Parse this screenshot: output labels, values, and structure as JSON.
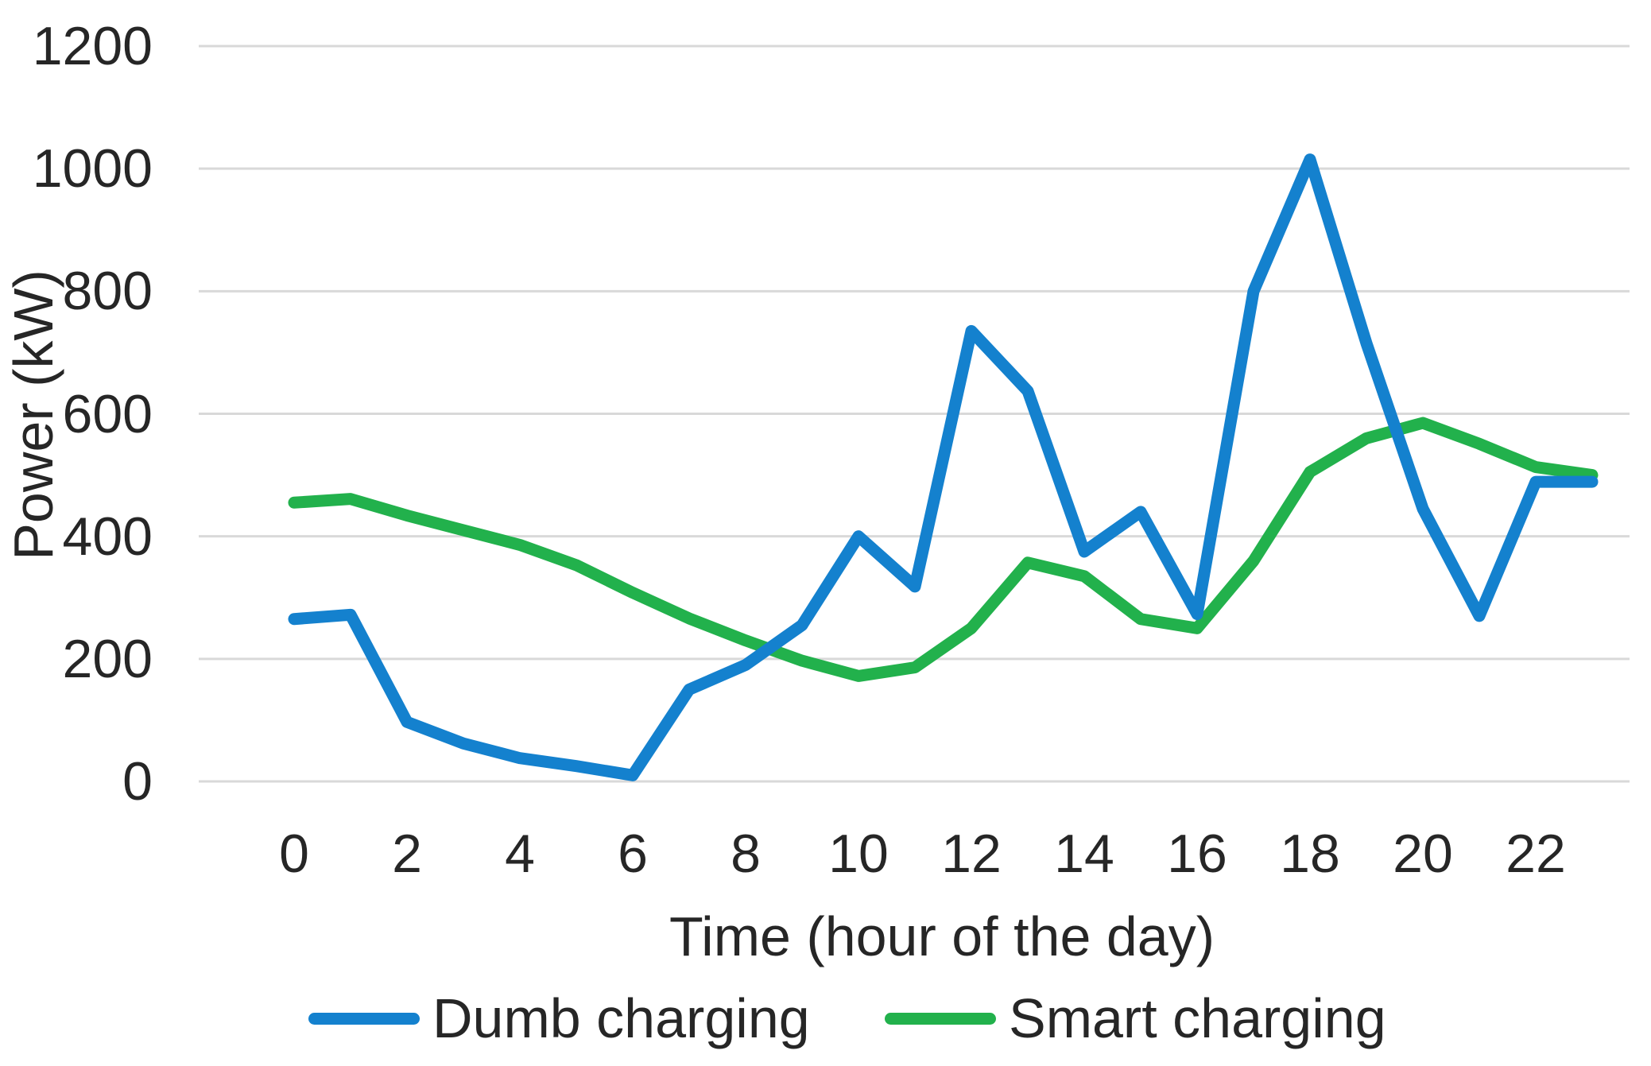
{
  "chart_data": {
    "type": "line",
    "x": [
      0,
      1,
      2,
      3,
      4,
      5,
      6,
      7,
      8,
      9,
      10,
      11,
      12,
      13,
      14,
      15,
      16,
      17,
      18,
      19,
      20,
      21,
      22,
      23
    ],
    "x_tick_labels": [
      "0",
      "2",
      "4",
      "6",
      "8",
      "10",
      "12",
      "14",
      "16",
      "18",
      "20",
      "22"
    ],
    "x_tick_values": [
      0,
      2,
      4,
      6,
      8,
      10,
      12,
      14,
      16,
      18,
      20,
      22
    ],
    "y_tick_labels": [
      "0",
      "200",
      "400",
      "600",
      "800",
      "1000",
      "1200"
    ],
    "y_tick_values": [
      0,
      200,
      400,
      600,
      800,
      1000,
      1200
    ],
    "xlabel": "Time (hour of the day)",
    "ylabel": "Power (kW)",
    "ylim": [
      0,
      1200
    ],
    "grid": true,
    "gridline_color": "#d9d9d9",
    "background_color": "#ffffff",
    "text_color": "#262626",
    "legend_position": "bottom",
    "series": [
      {
        "name": "Dumb charging",
        "color": "#1481ce",
        "values": [
          265,
          272,
          97,
          62,
          38,
          25,
          10,
          150,
          190,
          255,
          400,
          318,
          735,
          637,
          375,
          440,
          273,
          800,
          1015,
          715,
          445,
          270,
          489,
          489
        ]
      },
      {
        "name": "Smart charging",
        "color": "#22b14c",
        "values": [
          455,
          461,
          434,
          410,
          386,
          353,
          308,
          266,
          230,
          197,
          172,
          186,
          250,
          357,
          335,
          265,
          250,
          360,
          505,
          560,
          585,
          551,
          513,
          500
        ]
      }
    ]
  }
}
